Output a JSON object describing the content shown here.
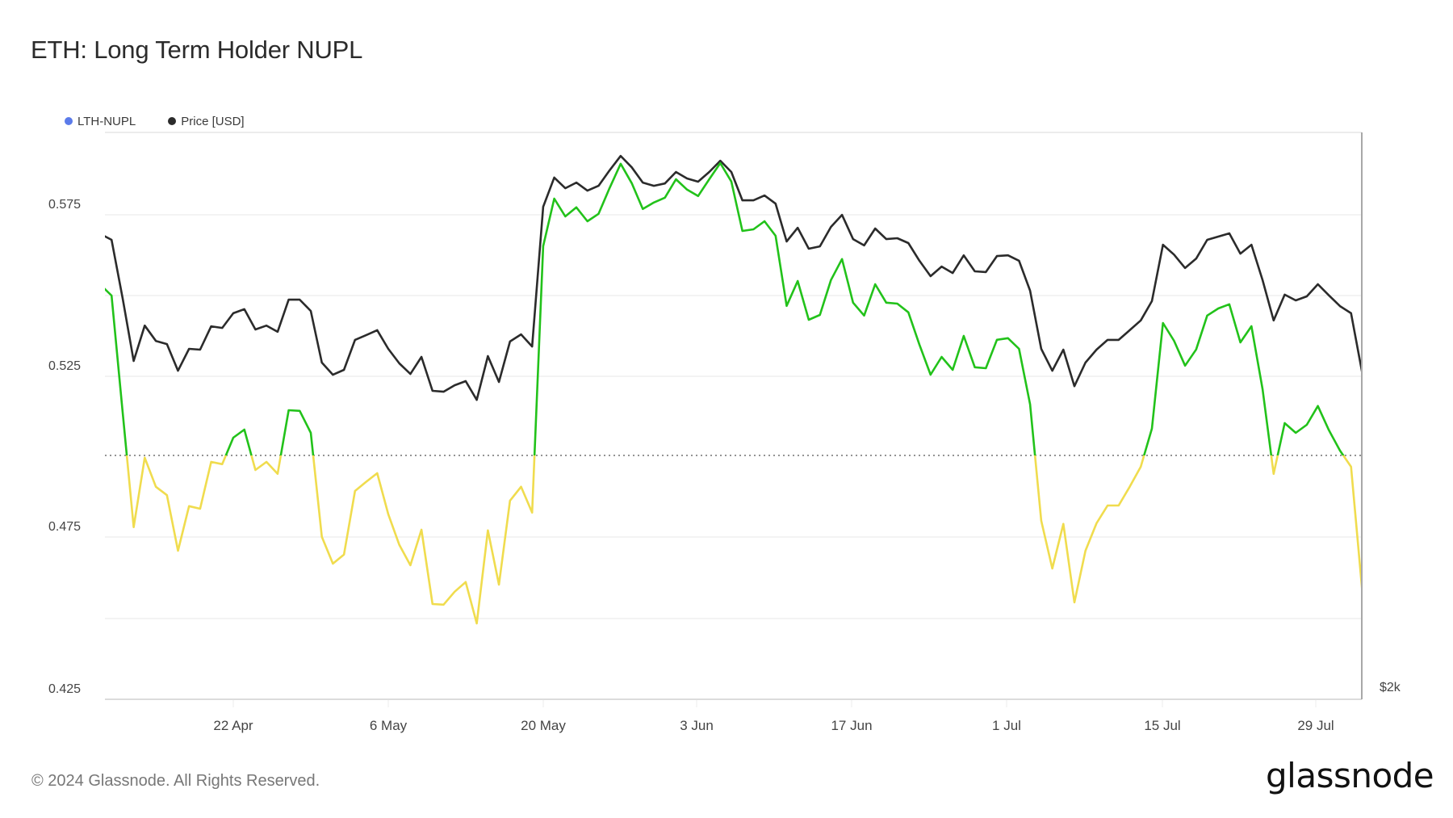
{
  "header": {
    "title": "ETH: Long Term Holder NUPL"
  },
  "legend": {
    "items": [
      {
        "label": "LTH-NUPL",
        "color": "#5b7bea"
      },
      {
        "label": "Price [USD]",
        "color": "#2b2b2b"
      }
    ]
  },
  "axes": {
    "left_ticks": [
      "0.575",
      "0.525",
      "0.475",
      "0.425"
    ],
    "right_ticks": [
      "$2k"
    ],
    "x_ticks": [
      "22 Apr",
      "6 May",
      "20 May",
      "3 Jun",
      "17 Jun",
      "1 Jul",
      "15 Jul",
      "29 Jul"
    ]
  },
  "colors": {
    "above_threshold": "#22c21a",
    "below_threshold": "#f0dc4e",
    "price_line": "#2b2b2b",
    "legend_nupl": "#5b7bea",
    "grid": "#efefef",
    "threshold_line": "#555555"
  },
  "footer": {
    "copyright": "© 2024 Glassnode. All Rights Reserved.",
    "logo": "glassnode"
  },
  "chart_data": {
    "type": "line",
    "title": "ETH: Long Term Holder NUPL",
    "xlabel": "",
    "ylabel": "LTH-NUPL",
    "y2label": "Price [USD]",
    "ylim": [
      0.425,
      0.6
    ],
    "y_ticks": [
      0.425,
      0.475,
      0.525,
      0.575
    ],
    "y2_scale": "log",
    "y2_ticks": [
      {
        "value": 2000,
        "label": "$2k"
      }
    ],
    "threshold": 0.5,
    "threshold_style": "dotted",
    "grid": true,
    "legend_position": "top-left",
    "x_start": "2024-04-10",
    "x_end": "2024-08-02",
    "x": [
      "Apr 10",
      "Apr 11",
      "Apr 12",
      "Apr 13",
      "Apr 14",
      "Apr 15",
      "Apr 16",
      "Apr 17",
      "Apr 18",
      "Apr 19",
      "Apr 20",
      "Apr 21",
      "Apr 22",
      "Apr 23",
      "Apr 24",
      "Apr 25",
      "Apr 26",
      "Apr 27",
      "Apr 28",
      "Apr 29",
      "Apr 30",
      "May 1",
      "May 2",
      "May 3",
      "May 4",
      "May 5",
      "May 6",
      "May 7",
      "May 8",
      "May 9",
      "May 10",
      "May 11",
      "May 12",
      "May 13",
      "May 14",
      "May 15",
      "May 16",
      "May 17",
      "May 18",
      "May 19",
      "May 20",
      "May 21",
      "May 22",
      "May 23",
      "May 24",
      "May 25",
      "May 26",
      "May 27",
      "May 28",
      "May 29",
      "May 30",
      "May 31",
      "Jun 1",
      "Jun 2",
      "Jun 3",
      "Jun 4",
      "Jun 5",
      "Jun 6",
      "Jun 7",
      "Jun 8",
      "Jun 9",
      "Jun 10",
      "Jun 11",
      "Jun 12",
      "Jun 13",
      "Jun 14",
      "Jun 15",
      "Jun 16",
      "Jun 17",
      "Jun 18",
      "Jun 19",
      "Jun 20",
      "Jun 21",
      "Jun 22",
      "Jun 23",
      "Jun 24",
      "Jun 25",
      "Jun 26",
      "Jun 27",
      "Jun 28",
      "Jun 29",
      "Jun 30",
      "Jul 1",
      "Jul 2",
      "Jul 3",
      "Jul 4",
      "Jul 5",
      "Jul 6",
      "Jul 7",
      "Jul 8",
      "Jul 9",
      "Jul 10",
      "Jul 11",
      "Jul 12",
      "Jul 13",
      "Jul 14",
      "Jul 15",
      "Jul 16",
      "Jul 17",
      "Jul 18",
      "Jul 19",
      "Jul 20",
      "Jul 21",
      "Jul 22",
      "Jul 23",
      "Jul 24",
      "Jul 25",
      "Jul 26",
      "Jul 27",
      "Jul 28",
      "Jul 29",
      "Jul 30",
      "Jul 31",
      "Aug 1",
      "Aug 2"
    ],
    "series": [
      {
        "name": "LTH-NUPL",
        "axis": "left",
        "values": [
          0.5533,
          0.55,
          0.514,
          0.4783,
          0.4998,
          0.4908,
          0.4882,
          0.471,
          0.4848,
          0.484,
          0.4985,
          0.4978,
          0.506,
          0.5085,
          0.496,
          0.4985,
          0.4948,
          0.5145,
          0.5143,
          0.5075,
          0.4753,
          0.467,
          0.4698,
          0.4895,
          0.4923,
          0.495,
          0.4823,
          0.4728,
          0.4665,
          0.4775,
          0.4545,
          0.4543,
          0.4583,
          0.4613,
          0.4485,
          0.4773,
          0.4605,
          0.4865,
          0.4908,
          0.4828,
          0.5653,
          0.58,
          0.5745,
          0.5773,
          0.573,
          0.5753,
          0.5833,
          0.5908,
          0.5848,
          0.5768,
          0.5788,
          0.5803,
          0.586,
          0.5828,
          0.5808,
          0.586,
          0.591,
          0.5853,
          0.57,
          0.5705,
          0.573,
          0.5685,
          0.5468,
          0.5545,
          0.5425,
          0.544,
          0.5548,
          0.5613,
          0.5478,
          0.5438,
          0.5535,
          0.5478,
          0.5475,
          0.5448,
          0.5348,
          0.5255,
          0.531,
          0.527,
          0.5375,
          0.5278,
          0.5275,
          0.5363,
          0.5368,
          0.5335,
          0.5163,
          0.4803,
          0.4655,
          0.4793,
          0.455,
          0.471,
          0.4795,
          0.485,
          0.485,
          0.4908,
          0.497,
          0.5088,
          0.5415,
          0.536,
          0.5283,
          0.5333,
          0.5438,
          0.546,
          0.5473,
          0.5355,
          0.5405,
          0.521,
          0.4948,
          0.5105,
          0.5075,
          0.51,
          0.5158,
          0.5083,
          0.502,
          0.497,
          0.459
        ]
      },
      {
        "name": "Price [USD]",
        "axis": "right",
        "values": [
          3536,
          3511,
          3269,
          3027,
          3161,
          3102,
          3090,
          2991,
          3072,
          3069,
          3158,
          3152,
          3209,
          3225,
          3146,
          3161,
          3137,
          3263,
          3263,
          3218,
          3021,
          2976,
          2994,
          3106,
          3124,
          3143,
          3072,
          3018,
          2979,
          3042,
          2918,
          2915,
          2938,
          2953,
          2886,
          3045,
          2950,
          3100,
          3127,
          3081,
          3656,
          3789,
          3740,
          3766,
          3729,
          3751,
          3823,
          3891,
          3837,
          3766,
          3751,
          3762,
          3815,
          3785,
          3770,
          3815,
          3868,
          3815,
          3685,
          3685,
          3707,
          3670,
          3504,
          3563,
          3473,
          3483,
          3567,
          3620,
          3514,
          3487,
          3560,
          3514,
          3518,
          3497,
          3422,
          3358,
          3398,
          3371,
          3445,
          3378,
          3375,
          3442,
          3445,
          3422,
          3299,
          3072,
          2991,
          3069,
          2935,
          3021,
          3069,
          3106,
          3106,
          3143,
          3181,
          3257,
          3490,
          3448,
          3392,
          3431,
          3511,
          3525,
          3539,
          3452,
          3490,
          3342,
          3181,
          3283,
          3260,
          3276,
          3325,
          3280,
          3237,
          3209,
          2985
        ]
      }
    ]
  }
}
